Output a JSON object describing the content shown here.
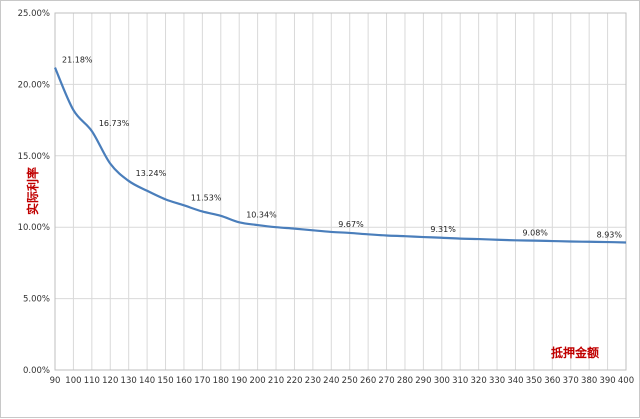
{
  "chart_data": {
    "type": "line",
    "x": [
      90,
      100,
      110,
      120,
      130,
      140,
      150,
      160,
      170,
      180,
      190,
      200,
      210,
      220,
      230,
      240,
      250,
      260,
      270,
      280,
      290,
      300,
      310,
      320,
      330,
      340,
      350,
      360,
      370,
      380,
      390,
      400
    ],
    "series": [
      {
        "values": [
          21.18,
          18.2,
          16.73,
          14.45,
          13.24,
          12.55,
          11.95,
          11.53,
          11.1,
          10.8,
          10.34,
          10.15,
          10.0,
          9.9,
          9.78,
          9.67,
          9.6,
          9.5,
          9.42,
          9.37,
          9.31,
          9.26,
          9.2,
          9.17,
          9.12,
          9.08,
          9.06,
          9.03,
          9.0,
          8.98,
          8.96,
          8.93
        ]
      }
    ],
    "data_labels": [
      {
        "x": 90,
        "text": "21.18%"
      },
      {
        "x": 110,
        "text": "16.73%"
      },
      {
        "x": 130,
        "text": "13.24%"
      },
      {
        "x": 160,
        "text": "11.53%"
      },
      {
        "x": 190,
        "text": "10.34%"
      },
      {
        "x": 240,
        "text": "9.67%"
      },
      {
        "x": 290,
        "text": "9.31%"
      },
      {
        "x": 340,
        "text": "9.08%"
      },
      {
        "x": 400,
        "text": "8.93%"
      }
    ],
    "y_ticks": [
      "0.00%",
      "5.00%",
      "10.00%",
      "15.00%",
      "20.00%",
      "25.00%"
    ],
    "ylim": [
      0,
      25
    ],
    "xlabel": "抵押金额",
    "ylabel": "实际利率",
    "grid": true,
    "colors": {
      "line": "#4a7ebb",
      "axis_title": "#c00000",
      "gridline": "#d9d9d9"
    }
  }
}
